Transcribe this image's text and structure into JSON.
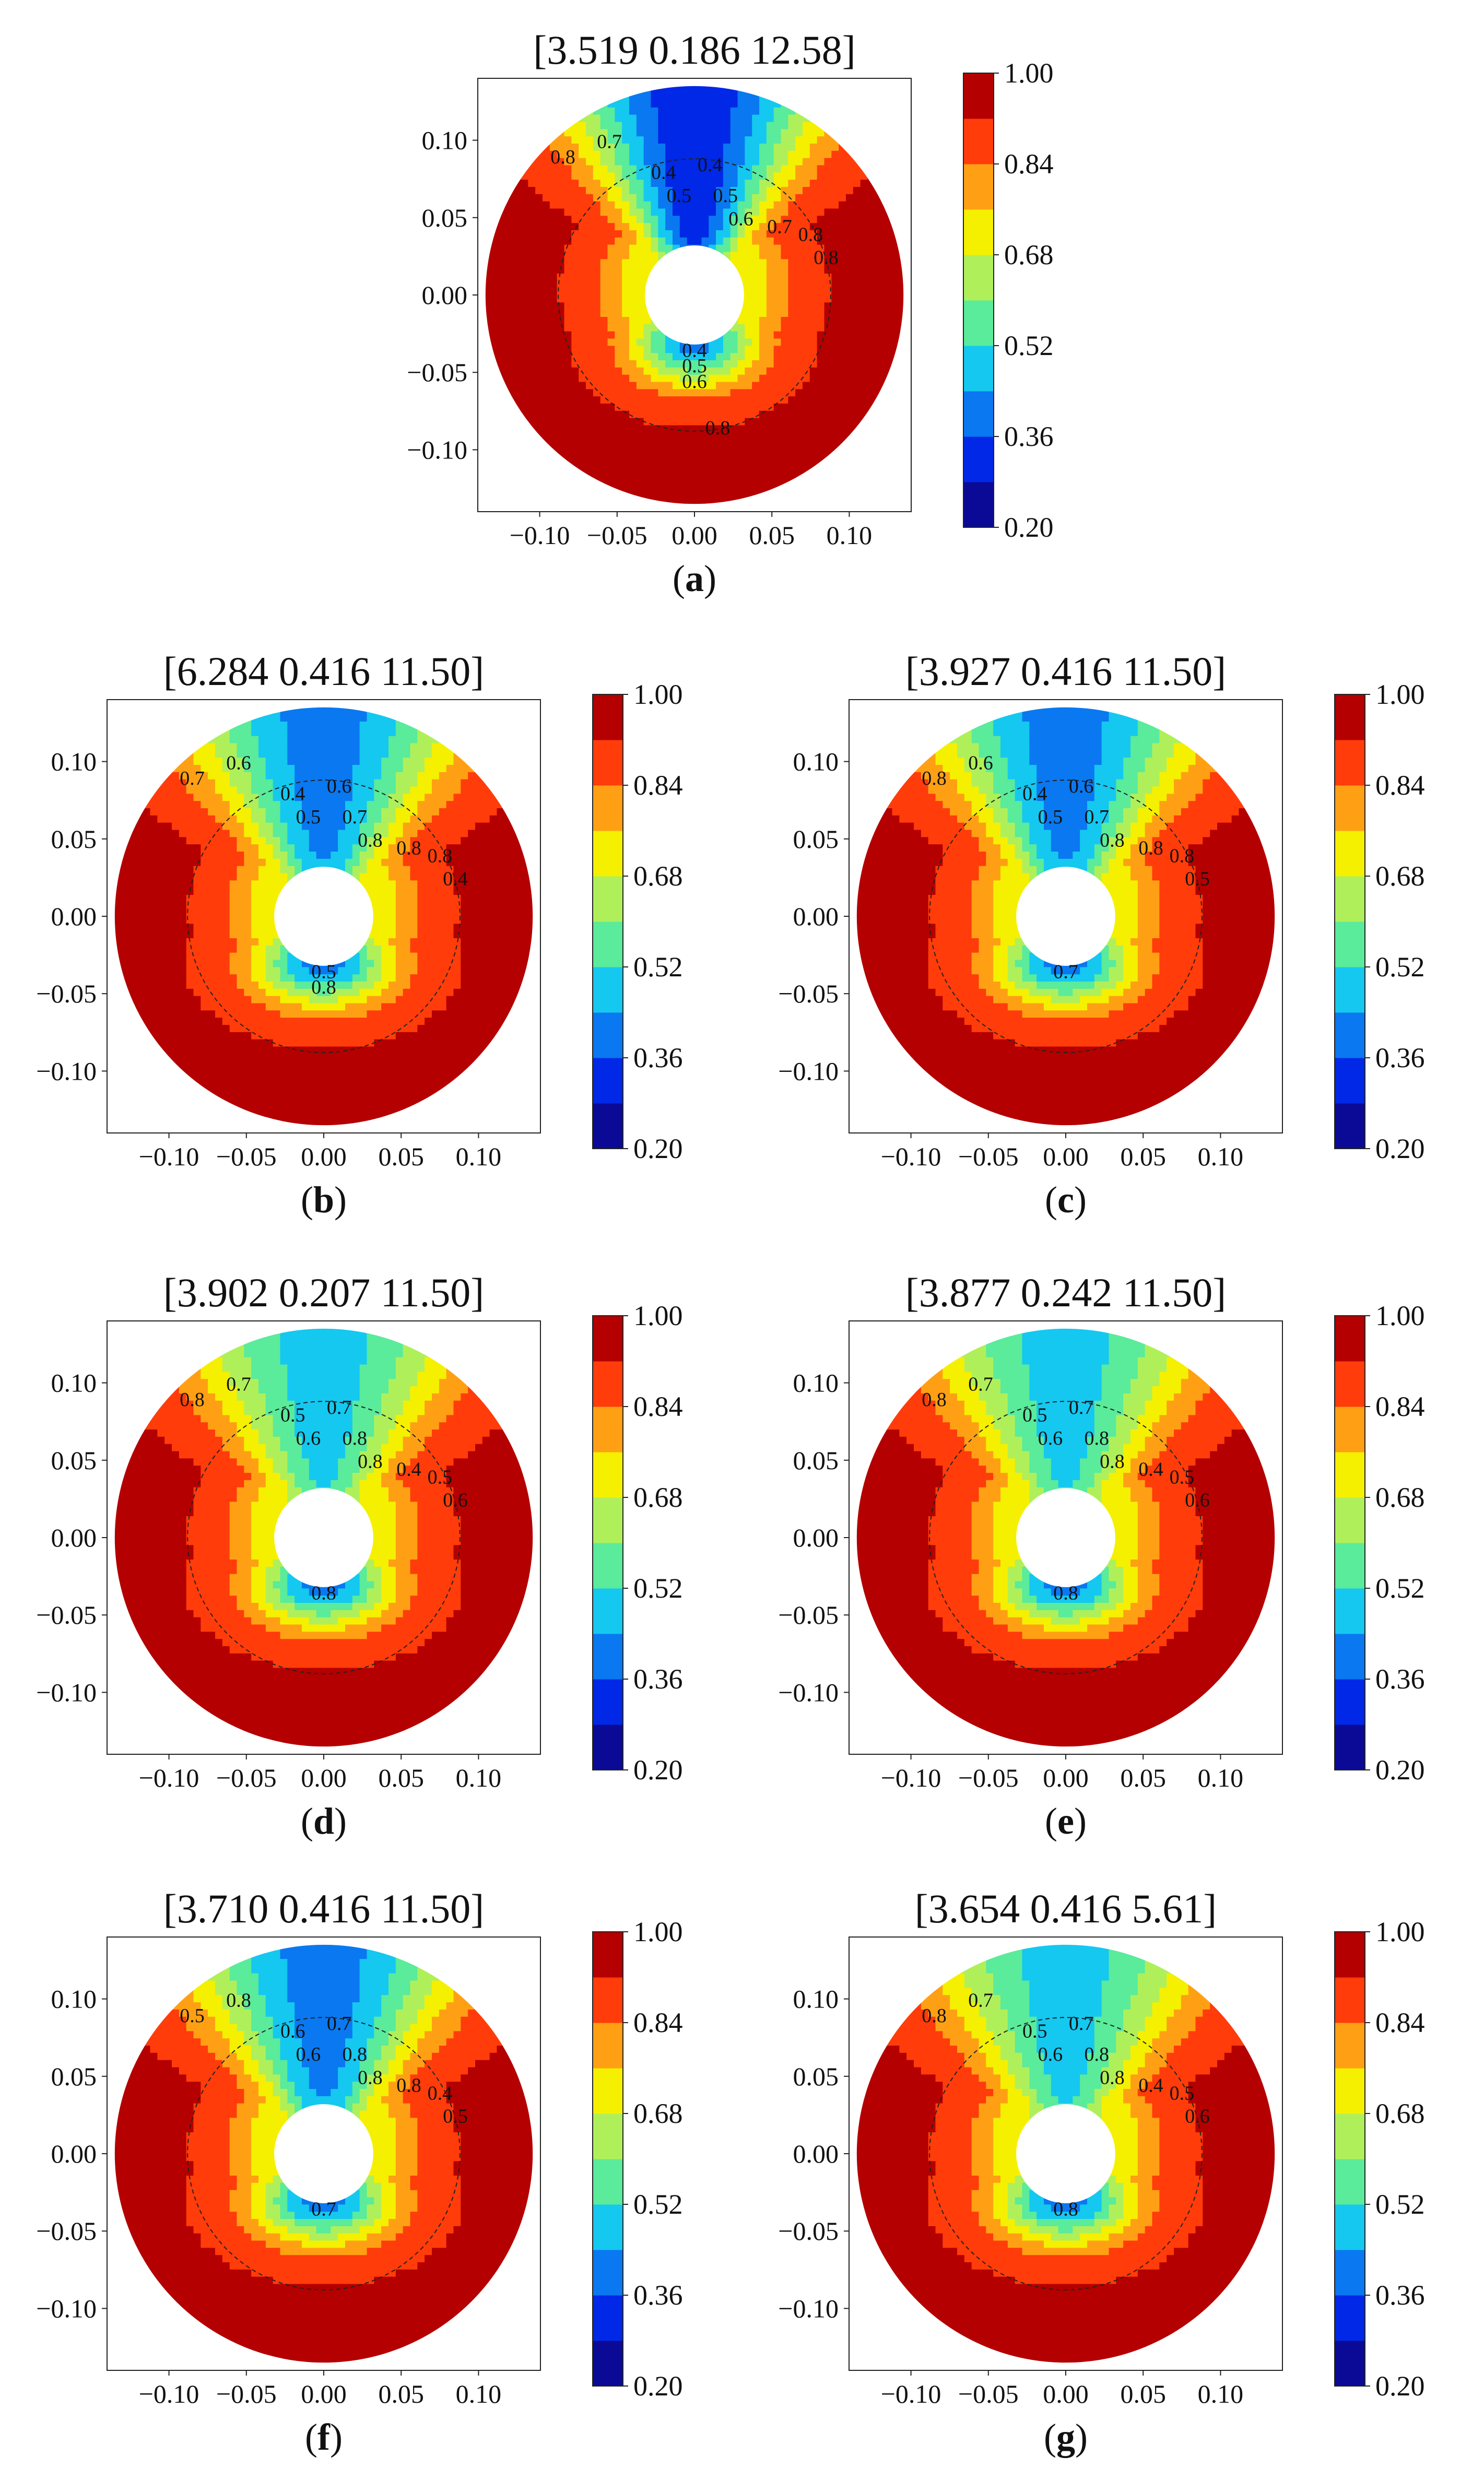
{
  "figure": {
    "colorbar_ticks": [
      "1.00",
      "0.84",
      "0.68",
      "0.52",
      "0.36",
      "0.20"
    ]
  },
  "chart_data": [
    {
      "panel": "a",
      "type": "heatmap",
      "title": "[3.519  0.186  12.58]",
      "caption": "a",
      "xticks": [
        "−0.10",
        "−0.05",
        "0.00",
        "0.05",
        "0.10"
      ],
      "yticks": [
        "0.10",
        "0.05",
        "0.00",
        "−0.05",
        "−0.10"
      ],
      "xlim": [
        -0.14,
        0.14
      ],
      "ylim": [
        -0.14,
        0.14
      ],
      "colorbar_range": [
        0.2,
        1.0
      ],
      "levels": [
        0.2,
        0.28,
        0.36,
        0.44,
        0.52,
        0.6,
        0.68,
        0.76,
        0.84,
        0.92,
        1.0
      ],
      "contour_labels": [
        "0.8",
        "0.7",
        "0.4",
        "0.5",
        "0.4",
        "0.5",
        "0.6",
        "0.7",
        "0.8",
        "0.8",
        "0.4",
        "0.5",
        "0.6",
        "0.8"
      ],
      "upper_min": 0.3,
      "lower_min": 0.4,
      "plume_width": 0.9
    },
    {
      "panel": "b",
      "type": "heatmap",
      "title": "[6.284  0.416  11.50]",
      "caption": "b",
      "xticks": [
        "−0.10",
        "−0.05",
        "0.00",
        "0.05",
        "0.10"
      ],
      "yticks": [
        "0.10",
        "0.05",
        "0.00",
        "−0.05",
        "−0.10"
      ],
      "xlim": [
        -0.14,
        0.14
      ],
      "ylim": [
        -0.14,
        0.14
      ],
      "colorbar_range": [
        0.2,
        1.0
      ],
      "levels": [
        0.2,
        0.28,
        0.36,
        0.44,
        0.52,
        0.6,
        0.68,
        0.76,
        0.84,
        0.92,
        1.0
      ],
      "contour_labels": [
        "0.7",
        "0.6",
        "0.4",
        "0.5",
        "0.6",
        "0.7",
        "0.8",
        "0.8",
        "0.8",
        "0.4",
        "0.5",
        "0.8"
      ],
      "upper_min": 0.4,
      "lower_min": 0.4,
      "plume_width": 1.0
    },
    {
      "panel": "c",
      "type": "heatmap",
      "title": "[3.927  0.416  11.50]",
      "caption": "c",
      "xticks": [
        "−0.10",
        "−0.05",
        "0.00",
        "0.05",
        "0.10"
      ],
      "yticks": [
        "0.10",
        "0.05",
        "0.00",
        "−0.05",
        "−0.10"
      ],
      "xlim": [
        -0.14,
        0.14
      ],
      "ylim": [
        -0.14,
        0.14
      ],
      "colorbar_range": [
        0.2,
        1.0
      ],
      "levels": [
        0.2,
        0.28,
        0.36,
        0.44,
        0.52,
        0.6,
        0.68,
        0.76,
        0.84,
        0.92,
        1.0
      ],
      "contour_labels": [
        "0.8",
        "0.6",
        "0.4",
        "0.5",
        "0.6",
        "0.7",
        "0.8",
        "0.8",
        "0.8",
        "0.5",
        "0.7"
      ],
      "upper_min": 0.4,
      "lower_min": 0.4,
      "plume_width": 1.0
    },
    {
      "panel": "d",
      "type": "heatmap",
      "title": "[3.902  0.207  11.50]",
      "caption": "d",
      "xticks": [
        "−0.10",
        "−0.05",
        "0.00",
        "0.05",
        "0.10"
      ],
      "yticks": [
        "0.10",
        "0.05",
        "0.00",
        "−0.05",
        "−0.10"
      ],
      "xlim": [
        -0.14,
        0.14
      ],
      "ylim": [
        -0.14,
        0.14
      ],
      "colorbar_range": [
        0.2,
        1.0
      ],
      "levels": [
        0.2,
        0.28,
        0.36,
        0.44,
        0.52,
        0.6,
        0.68,
        0.76,
        0.84,
        0.92,
        1.0
      ],
      "contour_labels": [
        "0.8",
        "0.7",
        "0.5",
        "0.6",
        "0.7",
        "0.8",
        "0.8",
        "0.4",
        "0.5",
        "0.6",
        "0.8"
      ],
      "upper_min": 0.48,
      "lower_min": 0.4,
      "plume_width": 1.0
    },
    {
      "panel": "e",
      "type": "heatmap",
      "title": "[3.877  0.242  11.50]",
      "caption": "e",
      "xticks": [
        "−0.10",
        "−0.05",
        "0.00",
        "0.05",
        "0.10"
      ],
      "yticks": [
        "0.10",
        "0.05",
        "0.00",
        "−0.05",
        "−0.10"
      ],
      "xlim": [
        -0.14,
        0.14
      ],
      "ylim": [
        -0.14,
        0.14
      ],
      "colorbar_range": [
        0.2,
        1.0
      ],
      "levels": [
        0.2,
        0.28,
        0.36,
        0.44,
        0.52,
        0.6,
        0.68,
        0.76,
        0.84,
        0.92,
        1.0
      ],
      "contour_labels": [
        "0.8",
        "0.7",
        "0.5",
        "0.6",
        "0.7",
        "0.8",
        "0.8",
        "0.4",
        "0.5",
        "0.6",
        "0.8"
      ],
      "upper_min": 0.48,
      "lower_min": 0.4,
      "plume_width": 1.0
    },
    {
      "panel": "f",
      "type": "heatmap",
      "title": "[3.710  0.416  11.50]",
      "caption": "f",
      "xticks": [
        "−0.10",
        "−0.05",
        "0.00",
        "0.05",
        "0.10"
      ],
      "yticks": [
        "0.10",
        "0.05",
        "0.00",
        "−0.05",
        "−0.10"
      ],
      "xlim": [
        -0.14,
        0.14
      ],
      "ylim": [
        -0.14,
        0.14
      ],
      "colorbar_range": [
        0.2,
        1.0
      ],
      "levels": [
        0.2,
        0.28,
        0.36,
        0.44,
        0.52,
        0.6,
        0.68,
        0.76,
        0.84,
        0.92,
        1.0
      ],
      "contour_labels": [
        "0.5",
        "0.8",
        "0.6",
        "0.6",
        "0.7",
        "0.8",
        "0.8",
        "0.8",
        "0.4",
        "0.5",
        "0.7"
      ],
      "upper_min": 0.4,
      "lower_min": 0.4,
      "plume_width": 1.0
    },
    {
      "panel": "g",
      "type": "heatmap",
      "title": "[3.654  0.416  5.61]",
      "caption": "g",
      "xticks": [
        "−0.10",
        "−0.05",
        "0.00",
        "0.05",
        "0.10"
      ],
      "yticks": [
        "0.10",
        "0.05",
        "0.00",
        "−0.05",
        "−0.10"
      ],
      "xlim": [
        -0.14,
        0.14
      ],
      "ylim": [
        -0.14,
        0.14
      ],
      "colorbar_range": [
        0.2,
        1.0
      ],
      "levels": [
        0.2,
        0.28,
        0.36,
        0.44,
        0.52,
        0.6,
        0.68,
        0.76,
        0.84,
        0.92,
        1.0
      ],
      "contour_labels": [
        "0.8",
        "0.7",
        "0.5",
        "0.6",
        "0.7",
        "0.8",
        "0.8",
        "0.4",
        "0.5",
        "0.6",
        "0.8"
      ],
      "upper_min": 0.48,
      "lower_min": 0.4,
      "plume_width": 1.0
    }
  ]
}
